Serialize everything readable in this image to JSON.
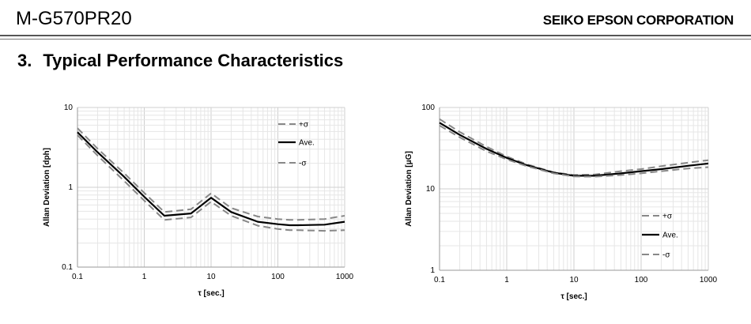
{
  "header": {
    "doc_id": "M-G570PR20",
    "corporation": "SEIKO EPSON CORPORATION"
  },
  "section": {
    "number": "3.",
    "title": "Typical Performance Characteristics"
  },
  "colors": {
    "average": "#000000",
    "sigma": "#888888",
    "grid": "#dcdcdc"
  },
  "chart_data": [
    {
      "type": "line",
      "xlabel": "τ [sec.]",
      "ylabel": "Allan Deviation [dph]",
      "xscale": "log",
      "yscale": "log",
      "xlim": [
        0.1,
        1000
      ],
      "ylim": [
        0.1,
        10
      ],
      "xticks": [
        "0.1",
        "1",
        "10",
        "100",
        "1000"
      ],
      "yticks": [
        "0.1",
        "1",
        "10"
      ],
      "legend_position": "top-right",
      "grid": true,
      "x": [
        0.1,
        0.2,
        0.5,
        1,
        2,
        5,
        10,
        20,
        50,
        100,
        150,
        200,
        500,
        1000
      ],
      "series": [
        {
          "name": "+σ",
          "style": "dashed",
          "values": [
            5.5,
            3.05,
            1.5,
            0.85,
            0.49,
            0.53,
            0.84,
            0.55,
            0.43,
            0.4,
            0.39,
            0.39,
            0.4,
            0.44
          ]
        },
        {
          "name": "Ave.",
          "style": "solid",
          "values": [
            4.9,
            2.75,
            1.35,
            0.76,
            0.44,
            0.47,
            0.74,
            0.49,
            0.37,
            0.345,
            0.335,
            0.335,
            0.34,
            0.37
          ]
        },
        {
          "name": "-σ",
          "style": "dashed",
          "values": [
            4.5,
            2.5,
            1.2,
            0.68,
            0.39,
            0.42,
            0.66,
            0.44,
            0.33,
            0.3,
            0.29,
            0.29,
            0.285,
            0.29
          ]
        }
      ]
    },
    {
      "type": "line",
      "xlabel": "τ [sec.]",
      "ylabel": "Allan Deviation [μG]",
      "xscale": "log",
      "yscale": "log",
      "xlim": [
        0.1,
        1000
      ],
      "ylim": [
        1,
        100
      ],
      "xticks": [
        "0.1",
        "1",
        "10",
        "100",
        "1000"
      ],
      "yticks": [
        "1",
        "10",
        "100"
      ],
      "legend_position": "bottom-right",
      "grid": true,
      "x": [
        0.1,
        0.2,
        0.5,
        1,
        2,
        5,
        10,
        20,
        50,
        100,
        200,
        500,
        1000
      ],
      "series": [
        {
          "name": "+σ",
          "style": "dashed",
          "values": [
            72,
            50,
            33,
            25,
            20,
            16,
            14.8,
            15,
            16.5,
            17.5,
            19,
            21,
            22.5
          ]
        },
        {
          "name": "Ave.",
          "style": "solid",
          "values": [
            65,
            46,
            31,
            24,
            19.5,
            15.8,
            14.5,
            14.5,
            15.5,
            16.5,
            17.5,
            19.2,
            20.5
          ]
        },
        {
          "name": "-σ",
          "style": "dashed",
          "values": [
            60,
            43,
            29,
            23,
            19,
            15.5,
            14.2,
            14.1,
            14.8,
            15.5,
            16.5,
            17.8,
            18.5
          ]
        }
      ]
    }
  ]
}
